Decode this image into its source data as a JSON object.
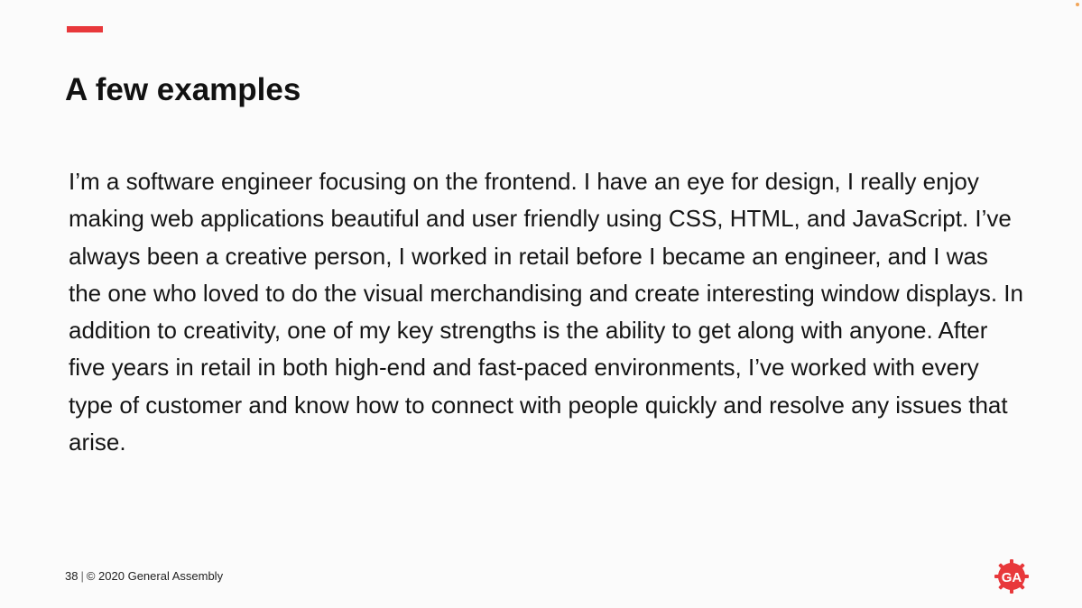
{
  "slide": {
    "title": "A few examples",
    "body": "I’m a software engineer focusing on the frontend. I have an eye for design, I really enjoy making web applications beautiful and user friendly using CSS, HTML, and JavaScript. I’ve always been a creative person, I worked in retail before I became an engineer, and I was the one who loved to do the visual merchandising and create interesting window displays. In addition to creativity, one of my key strengths is the ability to get along with anyone. After five years in retail in both high-end and fast-paced environments, I’ve worked with every type of customer and know how to connect with people quickly and resolve any issues that arise."
  },
  "footer": {
    "page_number": "38",
    "separator": "|",
    "copyright": "© 2020 General Assembly"
  },
  "logo": {
    "text": "GA",
    "icon": "general-assembly-logo-icon",
    "color": "#e8383b"
  },
  "colors": {
    "accent": "#e8383b",
    "background": "#fbfbfb",
    "text": "#111111"
  }
}
